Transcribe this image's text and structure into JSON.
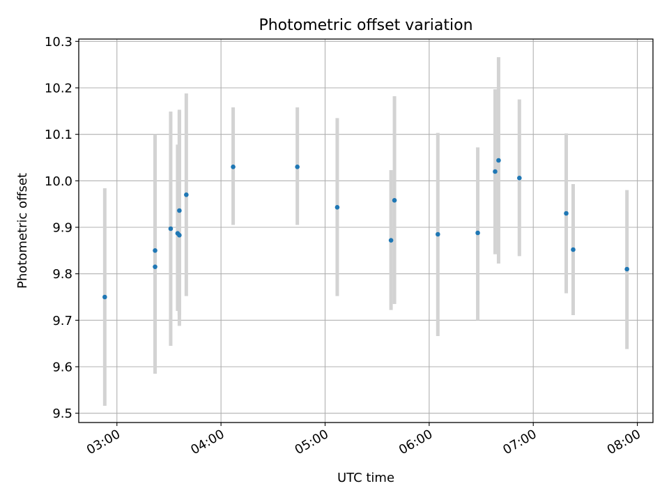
{
  "chart_data": {
    "type": "scatter",
    "title": "Photometric offset variation",
    "xlabel": "UTC time",
    "ylabel": "Photometric offset",
    "x_tick_labels": [
      "03:00",
      "04:00",
      "05:00",
      "06:00",
      "07:00",
      "08:00"
    ],
    "x_ticks": [
      "03:00",
      "04:00",
      "05:00",
      "06:00",
      "07:00",
      "08:00"
    ],
    "y_tick_labels": [
      "9.5",
      "9.6",
      "9.7",
      "9.8",
      "9.9",
      "10.0",
      "10.1",
      "10.2",
      "10.3"
    ],
    "y_ticks": [
      9.5,
      9.6,
      9.7,
      9.8,
      9.9,
      10.0,
      10.1,
      10.2,
      10.3
    ],
    "xlim": [
      "02:38",
      "08:09"
    ],
    "ylim": [
      9.48,
      10.305
    ],
    "grid": true,
    "marker_color": "#1f77b4",
    "errorbar_color": "#d3d3d3",
    "points": [
      {
        "x": "02:53",
        "y": 9.75,
        "low": 9.516,
        "high": 9.984
      },
      {
        "x": "03:22",
        "y": 9.815,
        "low": 9.585,
        "high": 10.1
      },
      {
        "x": "03:22",
        "y": 9.85,
        "low": 9.605,
        "high": 10.095
      },
      {
        "x": "03:31",
        "y": 9.897,
        "low": 9.645,
        "high": 10.149
      },
      {
        "x": "03:35",
        "y": 9.887,
        "low": 9.72,
        "high": 10.078
      },
      {
        "x": "03:36",
        "y": 9.883,
        "low": 9.688,
        "high": 10.153
      },
      {
        "x": "03:36",
        "y": 9.936,
        "low": 9.71,
        "high": 10.15
      },
      {
        "x": "03:40",
        "y": 9.97,
        "low": 9.752,
        "high": 10.188
      },
      {
        "x": "04:07",
        "y": 10.03,
        "low": 9.905,
        "high": 10.158
      },
      {
        "x": "04:44",
        "y": 10.03,
        "low": 9.905,
        "high": 10.158
      },
      {
        "x": "05:07",
        "y": 9.943,
        "low": 9.752,
        "high": 10.135
      },
      {
        "x": "05:38",
        "y": 9.872,
        "low": 9.722,
        "high": 10.023
      },
      {
        "x": "05:40",
        "y": 9.958,
        "low": 9.735,
        "high": 10.182
      },
      {
        "x": "06:05",
        "y": 9.885,
        "low": 9.666,
        "high": 10.103
      },
      {
        "x": "06:28",
        "y": 9.888,
        "low": 9.7,
        "high": 10.072
      },
      {
        "x": "06:38",
        "y": 10.02,
        "low": 9.842,
        "high": 10.197
      },
      {
        "x": "06:40",
        "y": 10.044,
        "low": 9.822,
        "high": 10.266
      },
      {
        "x": "06:52",
        "y": 10.006,
        "low": 9.838,
        "high": 10.175
      },
      {
        "x": "07:19",
        "y": 9.93,
        "low": 9.758,
        "high": 10.102
      },
      {
        "x": "07:23",
        "y": 9.852,
        "low": 9.711,
        "high": 9.993
      },
      {
        "x": "07:54",
        "y": 9.81,
        "low": 9.638,
        "high": 9.98
      }
    ]
  }
}
